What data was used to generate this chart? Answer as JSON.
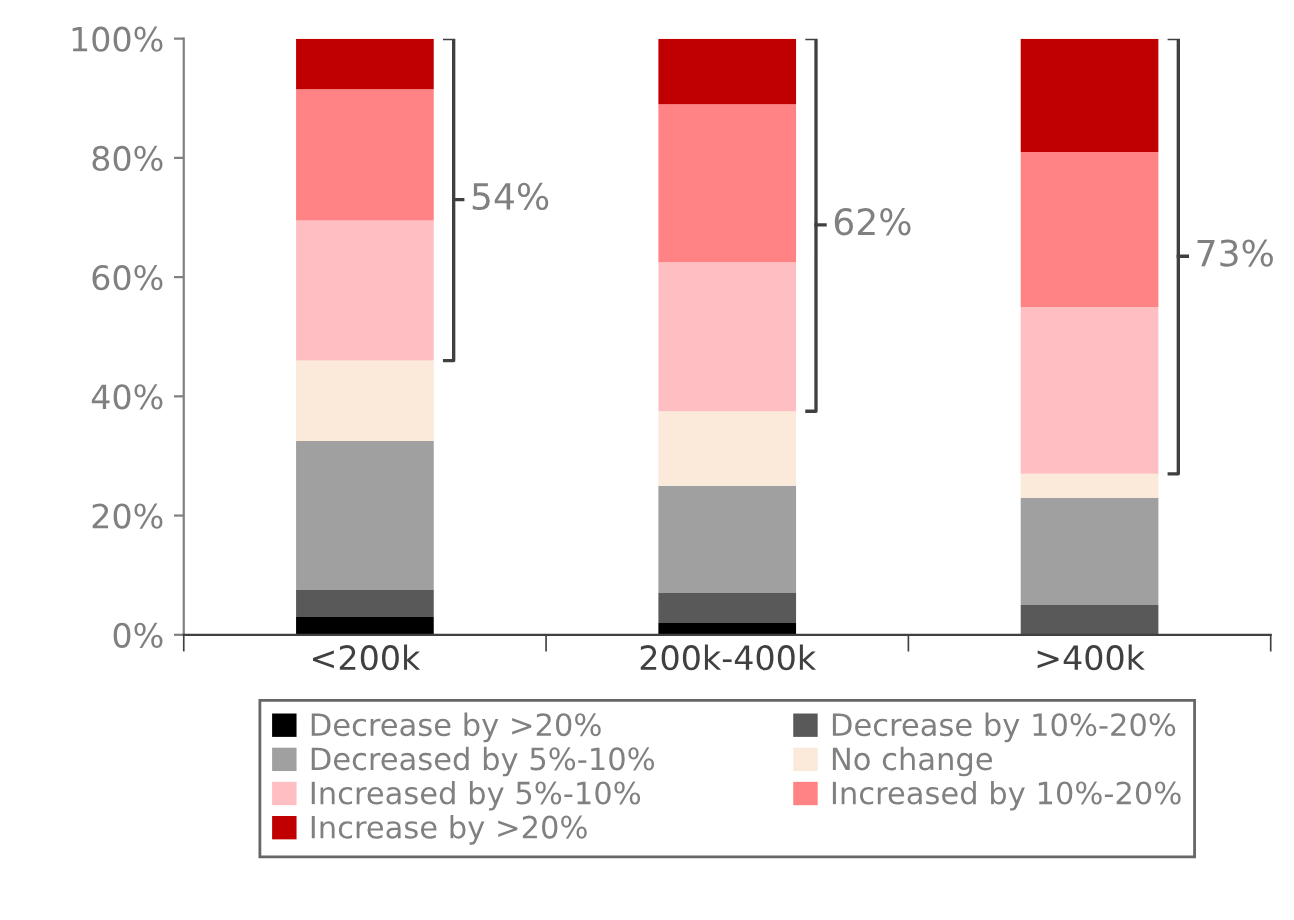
{
  "chart_data": {
    "type": "bar",
    "stacked": true,
    "categories": [
      "<200k",
      "200k-400k",
      ">400k"
    ],
    "series": [
      {
        "name": "Decrease by >20%",
        "color": "#000000",
        "values": [
          3,
          2,
          0
        ]
      },
      {
        "name": "Decrease by 10%-20%",
        "color": "#595959",
        "values": [
          4.5,
          5,
          5
        ]
      },
      {
        "name": "Decreased by 5%-10%",
        "color": "#a0a0a0",
        "values": [
          25,
          18,
          18
        ]
      },
      {
        "name": "No change",
        "color": "#fbe9da",
        "values": [
          13.5,
          12.5,
          4
        ]
      },
      {
        "name": "Increased by 5%-10%",
        "color": "#ffbfc2",
        "values": [
          23.5,
          25,
          28
        ]
      },
      {
        "name": "Increased by 10%-20%",
        "color": "#ff8384",
        "values": [
          22,
          26.5,
          26
        ]
      },
      {
        "name": "Increase by >20%",
        "color": "#c00000",
        "values": [
          8.5,
          11,
          19
        ]
      }
    ],
    "ylim": [
      0,
      100
    ],
    "yticks": [
      {
        "value": 0,
        "label": "0%"
      },
      {
        "value": 20,
        "label": "20%"
      },
      {
        "value": 40,
        "label": "40%"
      },
      {
        "value": 60,
        "label": "60%"
      },
      {
        "value": 80,
        "label": "80%"
      },
      {
        "value": 100,
        "label": "100%"
      }
    ],
    "grid": false,
    "legend": "bottom",
    "annotations": [
      "54%",
      "62%",
      "73%"
    ]
  }
}
